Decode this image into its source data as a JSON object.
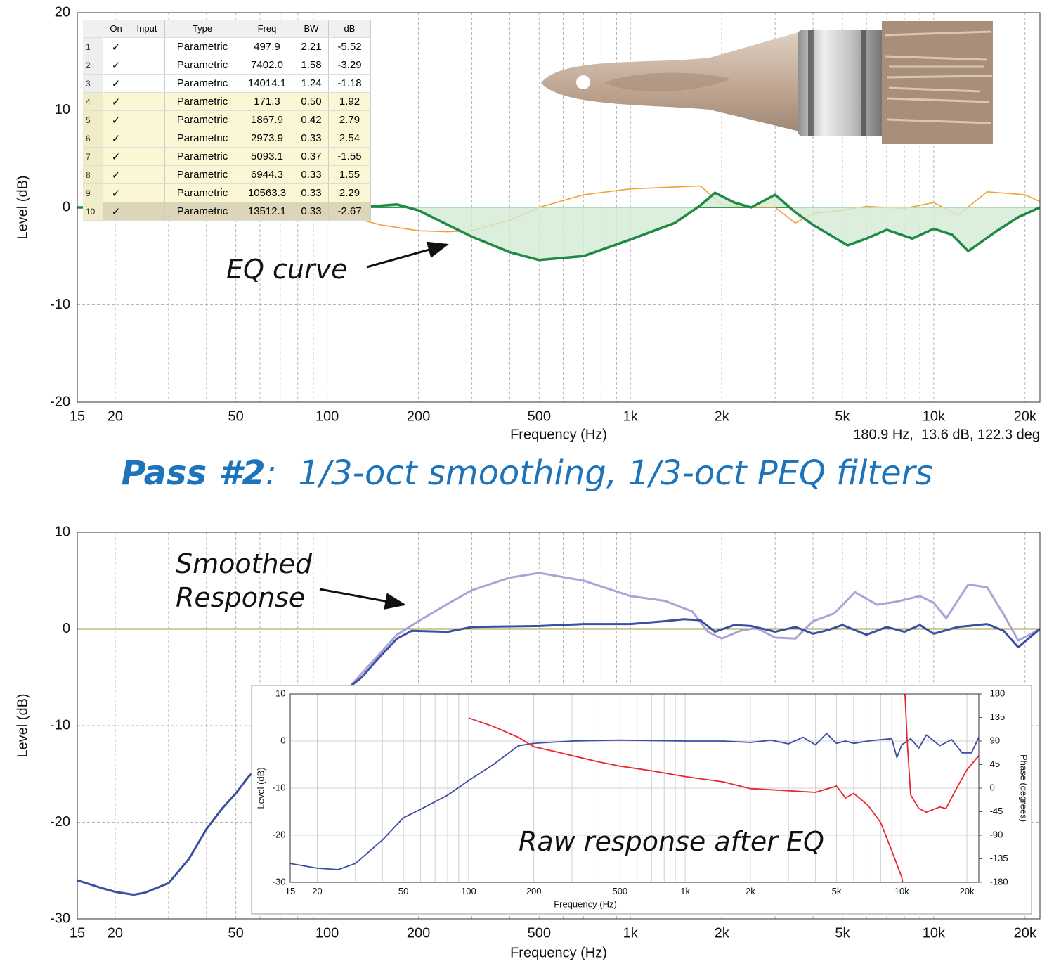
{
  "chart_data": [
    {
      "type": "line",
      "log_x": true,
      "grid_style": "dashed",
      "x_label": "Frequency (Hz)",
      "y_label": "Level (dB)",
      "readout": "180.9 Hz,  13.6 dB, 122.3 deg",
      "annotation": "EQ curve",
      "xlim": [
        15,
        22400
      ],
      "ylim": [
        -20,
        20
      ],
      "xticks": [
        15,
        20,
        50,
        100,
        200,
        500,
        {
          "value": 1000,
          "label": "1k"
        },
        {
          "value": 2000,
          "label": "2k"
        },
        {
          "value": 5000,
          "label": "5k"
        },
        {
          "value": 10000,
          "label": "10k"
        },
        {
          "value": 20000,
          "label": "20k"
        }
      ],
      "x_minor_grid": [
        30,
        40,
        60,
        70,
        80,
        90,
        300,
        400,
        600,
        700,
        800,
        900,
        3000,
        4000,
        6000,
        7000,
        8000,
        9000
      ],
      "yticks": [
        -20,
        -10,
        0,
        10,
        20
      ],
      "series": [
        {
          "color": "#2f9a4c",
          "x": [
            15,
            22400
          ],
          "values": [
            0,
            0
          ]
        },
        {
          "color": "#f0a033",
          "x": [
            120,
            150,
            200,
            250,
            300,
            400,
            500,
            700,
            1000,
            1400,
            1700,
            2000,
            2500,
            3000,
            3500,
            4000,
            5000,
            6000,
            8000,
            10000,
            12000,
            15000,
            20000,
            22400
          ],
          "values": [
            -1,
            -1.8,
            -2.4,
            -2.5,
            -2.4,
            -1.3,
            0,
            1.3,
            1.9,
            2.1,
            2.2,
            0.3,
            0,
            0,
            -1.6,
            -0.6,
            -0.3,
            0.1,
            -0.1,
            0.5,
            -0.8,
            1.6,
            1.3,
            0.6
          ]
        },
        {
          "color": "#1e8a45",
          "fill": "#d3ebd3",
          "x": [
            15,
            100,
            140,
            170,
            200,
            250,
            300,
            400,
            500,
            700,
            1000,
            1400,
            1700,
            1900,
            2200,
            2500,
            3000,
            3500,
            4000,
            5200,
            6000,
            7000,
            8500,
            10000,
            11500,
            13000,
            16000,
            19000,
            22400
          ],
          "values": [
            0,
            0,
            0.1,
            0.3,
            -0.3,
            -1.8,
            -3,
            -4.6,
            -5.4,
            -5,
            -3.3,
            -1.6,
            0.2,
            1.5,
            0.5,
            0,
            1.3,
            -0.5,
            -1.8,
            -3.9,
            -3.2,
            -2.3,
            -3.2,
            -2.2,
            -2.8,
            -4.5,
            -2.5,
            -1,
            0
          ]
        }
      ],
      "eq_table": {
        "columns": [
          "On",
          "Input",
          "Type",
          "Freq",
          "BW",
          "dB"
        ],
        "rows": [
          [
            "1",
            "✓",
            "Parametric",
            "497.9",
            "2.21",
            "-5.52"
          ],
          [
            "2",
            "✓",
            "Parametric",
            "7402.0",
            "1.58",
            "-3.29"
          ],
          [
            "3",
            "✓",
            "Parametric",
            "14014.1",
            "1.24",
            "-1.18"
          ],
          [
            "4",
            "✓",
            "Parametric",
            "171.3",
            "0.50",
            "1.92"
          ],
          [
            "5",
            "✓",
            "Parametric",
            "1867.9",
            "0.42",
            "2.79"
          ],
          [
            "6",
            "✓",
            "Parametric",
            "2973.9",
            "0.33",
            "2.54"
          ],
          [
            "7",
            "✓",
            "Parametric",
            "5093.1",
            "0.37",
            "-1.55"
          ],
          [
            "8",
            "✓",
            "Parametric",
            "6944.3",
            "0.33",
            "1.55"
          ],
          [
            "9",
            "✓",
            "Parametric",
            "10563.3",
            "0.33",
            "2.29"
          ],
          [
            "10",
            "✓",
            "Parametric",
            "13512.1",
            "0.33",
            "-2.67"
          ]
        ]
      }
    },
    {
      "type": "line",
      "log_x": true,
      "grid_style": "dashed",
      "x_label": "Frequency (Hz)",
      "y_label": "Level (dB)",
      "annotation": [
        "Smoothed",
        "Response"
      ],
      "xlim": [
        15,
        22400
      ],
      "ylim": [
        -30,
        10
      ],
      "xticks": [
        15,
        20,
        50,
        100,
        200,
        500,
        {
          "value": 1000,
          "label": "1k"
        },
        {
          "value": 2000,
          "label": "2k"
        },
        {
          "value": 5000,
          "label": "5k"
        },
        {
          "value": 10000,
          "label": "10k"
        },
        {
          "value": 20000,
          "label": "20k"
        }
      ],
      "x_minor_grid": [
        30,
        40,
        60,
        70,
        80,
        90,
        300,
        400,
        600,
        700,
        800,
        900,
        3000,
        4000,
        6000,
        7000,
        8000,
        9000
      ],
      "yticks": [
        -30,
        -20,
        -10,
        0,
        10
      ],
      "series": [
        {
          "color": "#a29e3a",
          "x": [
            15,
            22400
          ],
          "values": [
            0,
            0
          ]
        },
        {
          "color": "#a8a4d6",
          "x": [
            120,
            140,
            170,
            200,
            250,
            300,
            400,
            500,
            700,
            1000,
            1300,
            1600,
            1800,
            2000,
            2300,
            2600,
            3000,
            3500,
            4000,
            4700,
            5500,
            6500,
            7500,
            9000,
            10000,
            11000,
            13000,
            15000,
            17000,
            19000,
            21000,
            22400
          ],
          "values": [
            -5.8,
            -3.5,
            -0.6,
            0.8,
            2.6,
            4,
            5.3,
            5.8,
            5,
            3.4,
            2.9,
            1.8,
            -0.3,
            -1,
            -0.2,
            0.1,
            -0.9,
            -1,
            0.8,
            1.6,
            3.8,
            2.5,
            2.8,
            3.4,
            2.7,
            1.1,
            4.6,
            4.3,
            1.5,
            -1.2,
            -0.5,
            0
          ]
        },
        {
          "color": "#3a4ea2",
          "x": [
            15,
            18,
            20,
            23,
            25,
            30,
            35,
            40,
            45,
            50,
            55,
            70,
            90,
            110,
            130,
            150,
            170,
            190,
            250,
            300,
            500,
            700,
            1000,
            1300,
            1500,
            1700,
            1900,
            2200,
            2500,
            3000,
            3500,
            4000,
            4500,
            5000,
            6000,
            7000,
            8000,
            9000,
            10000,
            12000,
            13000,
            15000,
            17000,
            19000,
            22400
          ],
          "values": [
            -26,
            -26.8,
            -27.2,
            -27.5,
            -27.3,
            -26.3,
            -23.8,
            -20.7,
            -18.6,
            -17,
            -15.3,
            -12,
            -9,
            -6.8,
            -5,
            -2.8,
            -1,
            -0.2,
            -0.3,
            0.2,
            0.3,
            0.5,
            0.5,
            0.8,
            1,
            0.9,
            -0.3,
            0.4,
            0.3,
            -0.3,
            0.2,
            -0.5,
            -0.1,
            0.4,
            -0.6,
            0.2,
            -0.3,
            0.4,
            -0.5,
            0.2,
            0.3,
            0.5,
            -0.2,
            -1.9,
            0
          ]
        }
      ]
    },
    {
      "type": "line",
      "log_x": true,
      "grid_style": "solid",
      "x_label": "Frequency (Hz)",
      "y_label": "Level (dB)",
      "y2_label": "Phase (degrees)",
      "annotation": "Raw response after EQ",
      "xlim": [
        15,
        22700
      ],
      "ylim": [
        -30,
        10
      ],
      "y2lim": [
        -180,
        180
      ],
      "xticks": [
        15,
        20,
        50,
        100,
        200,
        500,
        {
          "value": 1000,
          "label": "1k"
        },
        {
          "value": 2000,
          "label": "2k"
        },
        {
          "value": 5000,
          "label": "5k"
        },
        {
          "value": 10000,
          "label": "10k"
        },
        {
          "value": 20000,
          "label": "20k"
        }
      ],
      "x_minor_grid": [
        30,
        40,
        60,
        70,
        80,
        90,
        300,
        400,
        600,
        700,
        800,
        900,
        3000,
        4000,
        6000,
        7000,
        8000,
        9000
      ],
      "yticks": [
        -30,
        -20,
        -10,
        0,
        10
      ],
      "y2ticks": [
        -180,
        -135,
        -90,
        -45,
        0,
        45,
        90,
        135,
        180
      ],
      "series": [
        {
          "color": "#3a4ea2",
          "x": [
            15,
            20,
            25,
            30,
            40,
            50,
            60,
            80,
            100,
            130,
            170,
            200,
            300,
            500,
            1000,
            1500,
            2000,
            2500,
            3000,
            3500,
            4000,
            4500,
            5000,
            5500,
            6000,
            7000,
            8000,
            9000,
            9500,
            10000,
            11000,
            12000,
            13000,
            15000,
            17000,
            19000,
            21000,
            22700
          ],
          "values": [
            -26,
            -27,
            -27.3,
            -26,
            -21,
            -16.3,
            -14.5,
            -11.5,
            -8.4,
            -5,
            -1,
            -0.5,
            0,
            0.2,
            0,
            0,
            -0.3,
            0.2,
            -0.6,
            0.8,
            -0.8,
            1.6,
            -0.5,
            0,
            -0.5,
            0,
            0.3,
            0.5,
            -3.5,
            -0.8,
            0.5,
            -1.5,
            1.3,
            -1,
            0.3,
            -2.5,
            -2.5,
            0.8
          ]
        },
        {
          "color": "#e8262b",
          "axis": "y2",
          "x": [
            100,
            130,
            170,
            200,
            250,
            300,
            400,
            500,
            700,
            1000,
            1500,
            2000,
            3000,
            4000,
            5000,
            5500,
            6000,
            7000,
            8000,
            9000,
            10000,
            10300,
            10300,
            10300,
            10600,
            11000,
            12000,
            13000,
            15000,
            16000,
            18000,
            20000,
            22700
          ],
          "values": [
            134,
            118,
            97,
            79,
            70,
            62,
            50,
            42,
            33,
            22,
            12,
            -1,
            -5,
            -8,
            4,
            -19,
            -10,
            -33,
            -66,
            -120,
            -170,
            -200,
            null,
            200,
            90,
            -13,
            -39,
            -46,
            -36,
            -39,
            1,
            35,
            62
          ]
        }
      ]
    }
  ],
  "heading": {
    "bold": "Pass #2",
    "rest": ":  1/3-oct smoothing, 1/3-oct PEQ filters"
  }
}
